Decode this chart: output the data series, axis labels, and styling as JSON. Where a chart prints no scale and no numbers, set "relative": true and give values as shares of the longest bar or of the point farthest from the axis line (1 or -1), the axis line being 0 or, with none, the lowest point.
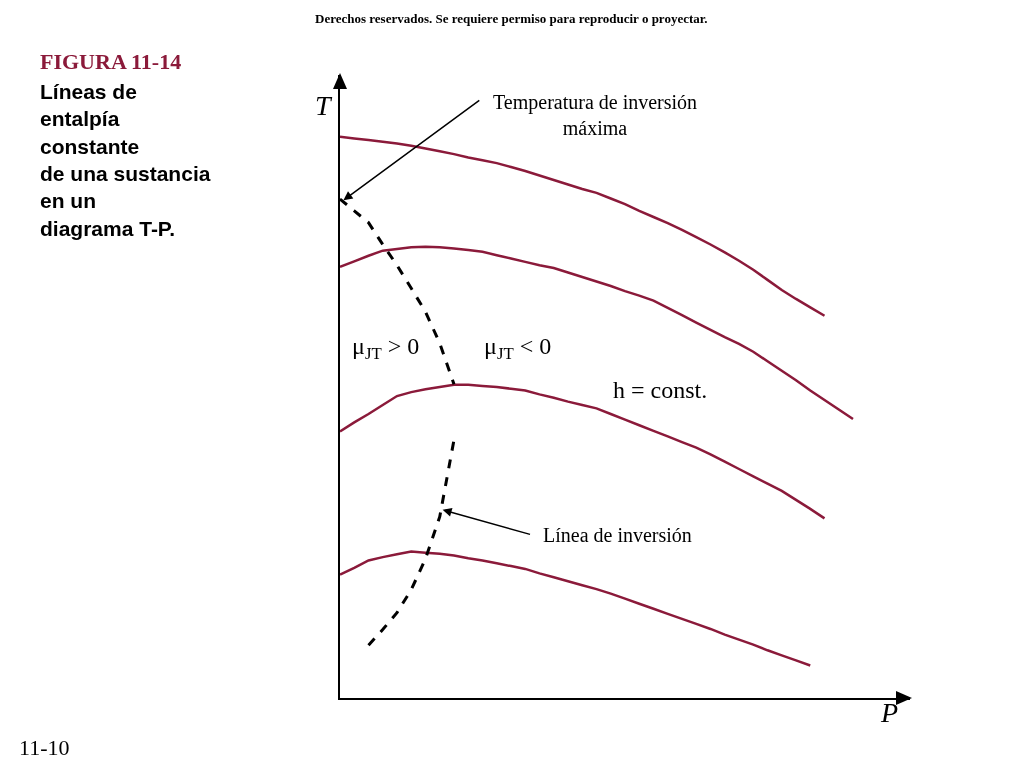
{
  "chart_data": {
    "type": "line",
    "title": "FIGURA 11-14",
    "subtitle": "Líneas de\nentalpía\nconstante\nde una sustancia\nen un\ndiagrama T-P.",
    "xlabel": "P",
    "ylabel": "T",
    "relative": true,
    "line_style": "solid",
    "categories": [
      null,
      null,
      null,
      null,
      null,
      null,
      null,
      null,
      null,
      null,
      null,
      null,
      null,
      null,
      null,
      null,
      null,
      null,
      null,
      null,
      null,
      null,
      null,
      null,
      null,
      null,
      null,
      null,
      null,
      null,
      null,
      null,
      null,
      null,
      null,
      null,
      null,
      null,
      null,
      null,
      null
    ],
    "series": [
      {
        "color": "#8b1a3a",
        "values": [
          1,
          0.997,
          0.994,
          0.991,
          0.988,
          0.984,
          0.979,
          0.974,
          0.969,
          0.963,
          0.958,
          0.953,
          0.946,
          0.939,
          0.931,
          0.923,
          0.915,
          0.907,
          0.9,
          0.89,
          0.88,
          0.868,
          0.857,
          0.846,
          0.834,
          0.821,
          0.808,
          0.794,
          0.779,
          0.763,
          0.745,
          0.727,
          0.711,
          0.696,
          0.681,
          null,
          null,
          null,
          null,
          null,
          null
        ]
      },
      {
        "color": "#8b1a3a",
        "values": [
          0.768,
          0.778,
          0.788,
          0.797,
          0.8,
          0.803,
          0.804,
          0.803,
          0.801,
          0.798,
          0.795,
          0.789,
          0.783,
          0.777,
          0.771,
          0.766,
          0.758,
          0.75,
          0.742,
          0.734,
          0.725,
          0.717,
          0.708,
          0.695,
          0.682,
          0.669,
          0.656,
          0.643,
          0.631,
          0.617,
          0.6,
          0.583,
          0.566,
          0.548,
          0.531,
          0.514,
          0.497,
          null,
          null,
          null,
          null
        ]
      },
      {
        "color": "#8b1a3a",
        "values": [
          0.475,
          0.491,
          0.506,
          0.522,
          0.538,
          0.545,
          0.55,
          0.554,
          0.558,
          0.558,
          0.556,
          0.554,
          0.551,
          0.548,
          0.541,
          0.535,
          0.528,
          0.522,
          0.516,
          0.506,
          0.496,
          0.486,
          0.476,
          0.466,
          0.456,
          0.446,
          0.434,
          0.421,
          0.408,
          0.395,
          0.382,
          0.369,
          0.353,
          0.337,
          0.32,
          null,
          null,
          null,
          null,
          null,
          null
        ]
      },
      {
        "color": "#8b1a3a",
        "values": [
          0.22,
          0.232,
          0.245,
          0.251,
          0.256,
          0.261,
          0.259,
          0.257,
          0.254,
          0.249,
          0.245,
          0.24,
          0.235,
          0.23,
          0.222,
          0.215,
          0.208,
          0.201,
          0.194,
          0.186,
          0.177,
          0.168,
          0.159,
          0.15,
          0.141,
          0.132,
          0.123,
          0.113,
          0.104,
          0.095,
          0.085,
          0.076,
          0.067,
          0.058,
          null,
          null,
          null,
          null,
          null,
          null,
          null
        ]
      },
      {
        "color": "#000000",
        "line_style": "dashed",
        "values": [
          0.889,
          0.868,
          0.847,
          0.808,
          0.771,
          0.73,
          0.688,
          0.632,
          0.559,
          null,
          null,
          null,
          null,
          null,
          null,
          null,
          null,
          null,
          null,
          null,
          null,
          null,
          null,
          null,
          null,
          null,
          null,
          null,
          null,
          null,
          null,
          null,
          null,
          null,
          null,
          null,
          null,
          null,
          null,
          null,
          null
        ]
      },
      {
        "color": "#000000",
        "line_style": "dashed",
        "values": [
          null,
          null,
          0.094,
          0.122,
          0.152,
          0.193,
          0.248,
          0.323,
          0.46,
          null,
          null,
          null,
          null,
          null,
          null,
          null,
          null,
          null,
          null,
          null,
          null,
          null,
          null,
          null,
          null,
          null,
          null,
          null,
          null,
          null,
          null,
          null,
          null,
          null,
          null,
          null,
          null,
          null,
          null,
          null,
          null
        ]
      }
    ],
    "annotations": [
      "Derechos reservados. Se requiere permiso para reproducir o proyectar.",
      "Temperatura de inversión\nmáxima",
      "μ$_{JT}$ > 0",
      "μ$_{JT}$ < 0",
      "h = const.",
      "Línea de inversión",
      "11-10"
    ]
  }
}
